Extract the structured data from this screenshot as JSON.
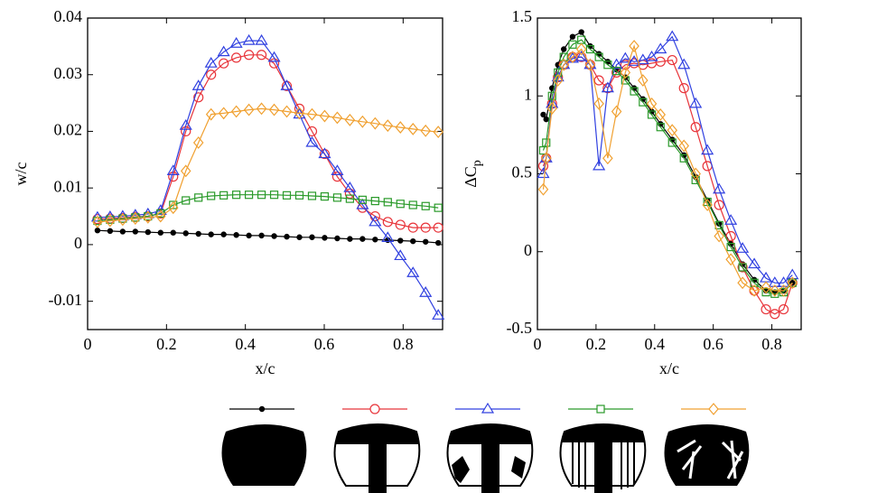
{
  "chart_data": [
    {
      "type": "line",
      "x_label": "x/c",
      "y_label": "w/c",
      "xlim": [
        0,
        0.9
      ],
      "xticks": [
        0,
        0.2,
        0.4,
        0.6,
        0.8
      ],
      "ylim": [
        -0.015,
        0.04
      ],
      "yticks": [
        -0.01,
        0,
        0.01,
        0.02,
        0.03,
        0.04
      ],
      "x": [
        0.025,
        0.057,
        0.089,
        0.121,
        0.153,
        0.185,
        0.217,
        0.249,
        0.281,
        0.313,
        0.345,
        0.377,
        0.409,
        0.441,
        0.473,
        0.505,
        0.537,
        0.569,
        0.601,
        0.633,
        0.665,
        0.697,
        0.729,
        0.761,
        0.793,
        0.825,
        0.857,
        0.889
      ],
      "series": [
        {
          "color": "#000000",
          "marker": "dot",
          "values": [
            0.0025,
            0.0024,
            0.0023,
            0.0023,
            0.0022,
            0.0021,
            0.0021,
            0.002,
            0.0019,
            0.0018,
            0.0018,
            0.0017,
            0.0016,
            0.0016,
            0.0015,
            0.0014,
            0.0013,
            0.0013,
            0.0012,
            0.0011,
            0.001,
            0.001,
            0.0009,
            0.0008,
            0.0007,
            0.0006,
            0.0005,
            0.0003
          ]
        },
        {
          "color": "#e8343a",
          "marker": "circle",
          "values": [
            0.0045,
            0.0046,
            0.0047,
            0.0049,
            0.005,
            0.0055,
            0.012,
            0.02,
            0.026,
            0.03,
            0.032,
            0.033,
            0.0335,
            0.0335,
            0.032,
            0.028,
            0.024,
            0.02,
            0.016,
            0.012,
            0.009,
            0.0065,
            0.005,
            0.004,
            0.0035,
            0.003,
            0.003,
            0.003
          ]
        },
        {
          "color": "#3040e0",
          "marker": "triangle",
          "values": [
            0.0048,
            0.0049,
            0.005,
            0.0052,
            0.0054,
            0.006,
            0.013,
            0.021,
            0.028,
            0.032,
            0.034,
            0.0355,
            0.036,
            0.036,
            0.033,
            0.028,
            0.023,
            0.018,
            0.016,
            0.013,
            0.01,
            0.007,
            0.004,
            0.0012,
            -0.002,
            -0.005,
            -0.0085,
            -0.0125
          ]
        },
        {
          "color": "#2a9a2a",
          "marker": "square",
          "values": [
            0.0042,
            0.0044,
            0.0046,
            0.0048,
            0.005,
            0.0055,
            0.007,
            0.0078,
            0.0083,
            0.0086,
            0.0087,
            0.0088,
            0.0088,
            0.0088,
            0.0088,
            0.0087,
            0.0087,
            0.0086,
            0.0085,
            0.0083,
            0.0081,
            0.0079,
            0.0077,
            0.0075,
            0.0072,
            0.007,
            0.0068,
            0.0065
          ]
        },
        {
          "color": "#f0a030",
          "marker": "diamond",
          "values": [
            0.004,
            0.0042,
            0.0044,
            0.0046,
            0.0048,
            0.005,
            0.0065,
            0.013,
            0.018,
            0.023,
            0.0232,
            0.0235,
            0.0238,
            0.024,
            0.0238,
            0.0235,
            0.0232,
            0.023,
            0.0227,
            0.0224,
            0.022,
            0.0217,
            0.0214,
            0.021,
            0.0207,
            0.0204,
            0.0201,
            0.0199
          ]
        }
      ]
    },
    {
      "type": "line",
      "x_label": "x/c",
      "y_label": "ΔC",
      "y_label_subscript": "p",
      "xlim": [
        0,
        0.9
      ],
      "xticks": [
        0,
        0.2,
        0.4,
        0.6,
        0.8
      ],
      "ylim": [
        -0.5,
        1.5
      ],
      "yticks": [
        -0.5,
        0,
        0.5,
        1,
        1.5
      ],
      "x": [
        0.02,
        0.03,
        0.05,
        0.07,
        0.09,
        0.12,
        0.15,
        0.18,
        0.21,
        0.24,
        0.27,
        0.3,
        0.33,
        0.36,
        0.39,
        0.42,
        0.46,
        0.5,
        0.54,
        0.58,
        0.62,
        0.66,
        0.7,
        0.74,
        0.78,
        0.81,
        0.84,
        0.87
      ],
      "series": [
        {
          "color": "#000000",
          "marker": "dot",
          "values": [
            0.88,
            0.85,
            1.05,
            1.2,
            1.3,
            1.38,
            1.41,
            1.32,
            1.27,
            1.22,
            1.17,
            1.12,
            1.05,
            0.98,
            0.9,
            0.82,
            0.72,
            0.62,
            0.48,
            0.33,
            0.18,
            0.05,
            -0.08,
            -0.18,
            -0.25,
            -0.26,
            -0.25,
            -0.2
          ]
        },
        {
          "color": "#e8343a",
          "marker": "circle",
          "values": [
            0.55,
            0.6,
            0.95,
            1.12,
            1.2,
            1.25,
            1.25,
            1.2,
            1.1,
            1.05,
            1.15,
            1.2,
            1.21,
            1.2,
            1.21,
            1.22,
            1.23,
            1.05,
            0.8,
            0.55,
            0.3,
            0.1,
            -0.1,
            -0.25,
            -0.37,
            -0.4,
            -0.37,
            -0.2
          ]
        },
        {
          "color": "#3040e0",
          "marker": "triangle",
          "values": [
            0.5,
            0.6,
            0.95,
            1.12,
            1.2,
            1.24,
            1.25,
            1.2,
            0.55,
            1.05,
            1.2,
            1.24,
            1.22,
            1.23,
            1.25,
            1.3,
            1.38,
            1.2,
            0.95,
            0.65,
            0.4,
            0.2,
            0.02,
            -0.08,
            -0.17,
            -0.2,
            -0.2,
            -0.15
          ]
        },
        {
          "color": "#2a9a2a",
          "marker": "square",
          "values": [
            0.65,
            0.7,
            1.0,
            1.15,
            1.25,
            1.33,
            1.36,
            1.3,
            1.25,
            1.2,
            1.16,
            1.1,
            1.03,
            0.96,
            0.88,
            0.8,
            0.7,
            0.6,
            0.46,
            0.32,
            0.17,
            0.03,
            -0.1,
            -0.2,
            -0.26,
            -0.27,
            -0.26,
            -0.2
          ]
        },
        {
          "color": "#f0a030",
          "marker": "diamond",
          "values": [
            0.4,
            0.6,
            0.92,
            1.1,
            1.2,
            1.25,
            1.3,
            1.2,
            0.95,
            0.6,
            0.9,
            1.15,
            1.32,
            1.1,
            0.95,
            0.88,
            0.78,
            0.68,
            0.5,
            0.3,
            0.1,
            -0.05,
            -0.2,
            -0.25,
            -0.23,
            -0.25,
            -0.25,
            -0.2
          ]
        }
      ]
    }
  ]
}
